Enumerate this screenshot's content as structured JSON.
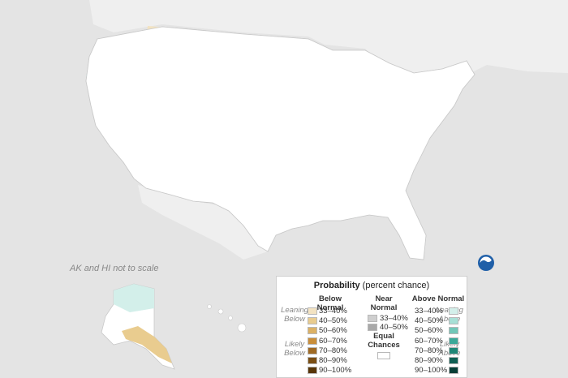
{
  "map": {
    "scale_note": "AK and HI not to scale",
    "logo_icon": "noaa-logo-icon"
  },
  "colors": {
    "below": [
      "#f3e3c2",
      "#e9cc8f",
      "#dcb165",
      "#c98e3a",
      "#9f6a24",
      "#7a4e14",
      "#573507"
    ],
    "above": [
      "#d3efea",
      "#a8e0d6",
      "#72c7b8",
      "#3ba898",
      "#1f8676",
      "#0f5f53",
      "#063e36"
    ],
    "near": [
      "#cfcfcf",
      "#a9a9a9"
    ],
    "equal": "#ffffff",
    "background": "#e4e4e4",
    "land": "#ffffff"
  },
  "legend": {
    "title_bold": "Probability",
    "title_rest": "(percent chance)",
    "below_head": "Below Normal",
    "near_head_1": "Near",
    "near_head_2": "Normal",
    "above_head": "Above Normal",
    "equal_1": "Equal",
    "equal_2": "Chances",
    "leaning_below_1": "Leaning",
    "leaning_below_2": "Below",
    "likely_below_1": "Likely",
    "likely_below_2": "Below",
    "leaning_above_1": "Leaning",
    "leaning_above_2": "Above",
    "likely_above_1": "Likely",
    "likely_above_2": "Above",
    "below_ranges": [
      "33–40%",
      "40–50%",
      "50–60%",
      "60–70%",
      "70–80%",
      "80–90%",
      "90–100%"
    ],
    "near_ranges": [
      "33–40%",
      "40–50%"
    ],
    "above_ranges": [
      "33–40%",
      "40–50%",
      "50–60%",
      "60–70%",
      "70–80%",
      "80–90%",
      "90–100%"
    ]
  }
}
